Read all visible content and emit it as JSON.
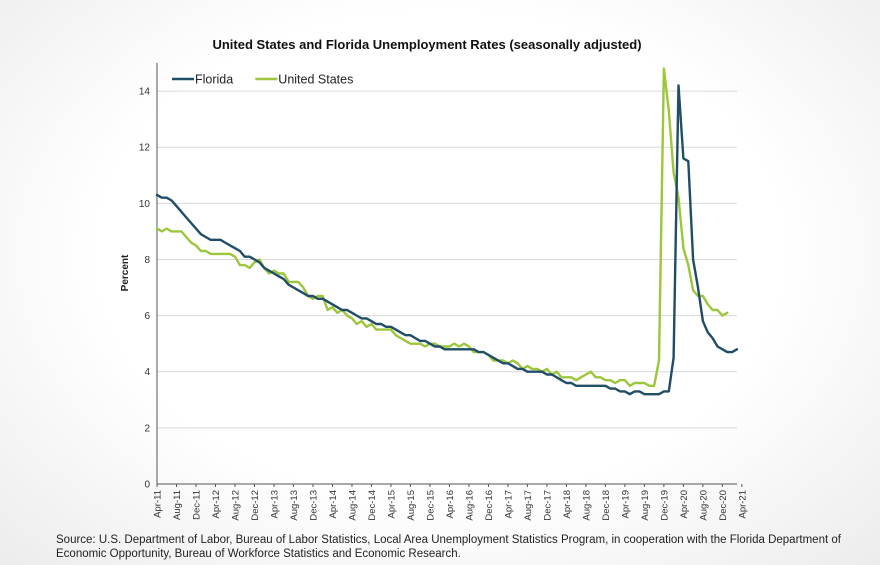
{
  "chart_data": {
    "type": "line",
    "title": "United States and Florida Unemployment Rates (seasonally adjusted)",
    "ylabel": "Percent",
    "xlabel": "",
    "ylim": [
      0,
      15
    ],
    "yticks": [
      0,
      2,
      4,
      6,
      8,
      10,
      12,
      14
    ],
    "grid": "horizontal",
    "legend": "top-left",
    "xtick_labels": [
      "Apr-11",
      "Aug-11",
      "Dec-11",
      "Apr-12",
      "Aug-12",
      "Dec-12",
      "Apr-13",
      "Aug-13",
      "Dec-13",
      "Apr-14",
      "Aug-14",
      "Dec-14",
      "Apr-15",
      "Aug-15",
      "Dec-15",
      "Apr-16",
      "Aug-16",
      "Dec-16",
      "Apr-17",
      "Aug-17",
      "Dec-17",
      "Apr-18",
      "Aug-18",
      "Dec-18",
      "Apr-19",
      "Aug-19",
      "Dec-19",
      "Apr-20",
      "Aug-20",
      "Dec-20",
      "Apr-21"
    ],
    "series": [
      {
        "name": "Florida",
        "color": "#1f4e66",
        "values": [
          10.3,
          10.2,
          10.2,
          10.1,
          9.9,
          9.7,
          9.5,
          9.3,
          9.1,
          8.9,
          8.8,
          8.7,
          8.7,
          8.7,
          8.6,
          8.5,
          8.4,
          8.3,
          8.1,
          8.1,
          8.0,
          7.9,
          7.7,
          7.6,
          7.5,
          7.4,
          7.3,
          7.1,
          7.0,
          6.9,
          6.8,
          6.7,
          6.7,
          6.6,
          6.6,
          6.5,
          6.4,
          6.3,
          6.2,
          6.2,
          6.1,
          6.0,
          5.9,
          5.9,
          5.8,
          5.7,
          5.7,
          5.6,
          5.6,
          5.5,
          5.4,
          5.3,
          5.3,
          5.2,
          5.1,
          5.1,
          5.0,
          4.9,
          4.9,
          4.8,
          4.8,
          4.8,
          4.8,
          4.8,
          4.8,
          4.8,
          4.7,
          4.7,
          4.6,
          4.5,
          4.4,
          4.3,
          4.3,
          4.2,
          4.1,
          4.1,
          4.0,
          4.0,
          4.0,
          4.0,
          3.9,
          3.9,
          3.8,
          3.7,
          3.6,
          3.6,
          3.5,
          3.5,
          3.5,
          3.5,
          3.5,
          3.5,
          3.5,
          3.4,
          3.4,
          3.3,
          3.3,
          3.2,
          3.3,
          3.3,
          3.2,
          3.2,
          3.2,
          3.2,
          3.3,
          3.3,
          4.5,
          14.2,
          11.6,
          11.5,
          8.0,
          7.0,
          5.8,
          5.4,
          5.2,
          4.9,
          4.8,
          4.7,
          4.7,
          4.8
        ]
      },
      {
        "name": "United States",
        "color": "#9cc63b",
        "values": [
          9.1,
          9.0,
          9.1,
          9.0,
          9.0,
          9.0,
          8.8,
          8.6,
          8.5,
          8.3,
          8.3,
          8.2,
          8.2,
          8.2,
          8.2,
          8.2,
          8.1,
          7.8,
          7.8,
          7.7,
          7.9,
          8.0,
          7.7,
          7.5,
          7.6,
          7.5,
          7.5,
          7.2,
          7.2,
          7.2,
          7.0,
          6.7,
          6.6,
          6.7,
          6.7,
          6.2,
          6.3,
          6.1,
          6.2,
          6.0,
          5.9,
          5.7,
          5.8,
          5.6,
          5.7,
          5.5,
          5.5,
          5.5,
          5.5,
          5.3,
          5.2,
          5.1,
          5.0,
          5.0,
          5.0,
          4.9,
          5.0,
          5.0,
          4.9,
          4.9,
          4.9,
          5.0,
          4.9,
          5.0,
          4.9,
          4.7,
          4.7,
          4.7,
          4.6,
          4.4,
          4.4,
          4.4,
          4.3,
          4.4,
          4.3,
          4.1,
          4.2,
          4.1,
          4.1,
          4.0,
          4.1,
          3.9,
          4.0,
          3.8,
          3.8,
          3.8,
          3.7,
          3.8,
          3.9,
          4.0,
          3.8,
          3.8,
          3.7,
          3.7,
          3.6,
          3.7,
          3.7,
          3.5,
          3.6,
          3.6,
          3.6,
          3.5,
          3.5,
          4.4,
          14.8,
          13.3,
          11.1,
          10.2,
          8.4,
          7.8,
          6.9,
          6.7,
          6.7,
          6.4,
          6.2,
          6.2,
          6.0,
          6.1
        ]
      }
    ]
  },
  "source_text": "Source:  U.S. Department of Labor, Bureau of Labor Statistics, Local Area Unemployment Statistics Program, in cooperation with the Florida Department of Economic Opportunity, Bureau of Workforce Statistics and Economic Research."
}
